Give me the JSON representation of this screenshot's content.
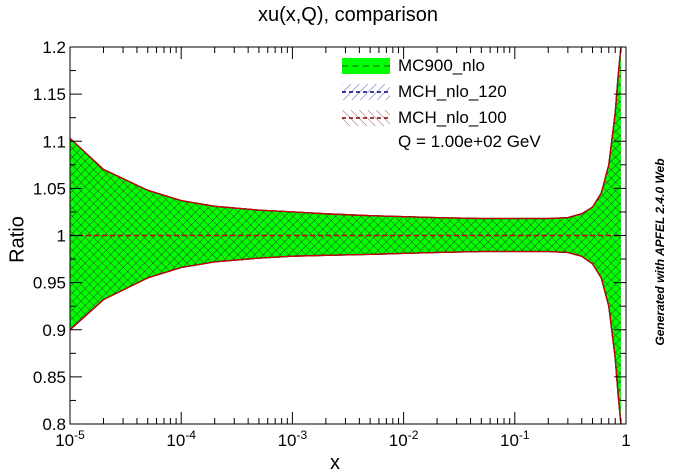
{
  "title": "xu(x,Q), comparison",
  "side_note": "Generated with APFEL 2.4.0 Web",
  "legend": {
    "items": [
      "MC900_nlo",
      "MCH_nlo_120",
      "MCH_nlo_100"
    ],
    "note": "Q = 1.00e+02 GeV"
  },
  "colors": {
    "mc900": "#00ff00",
    "mch120": "#000080",
    "mch100": "#800000",
    "nominal": "#cc0000"
  },
  "chart_data": {
    "type": "area",
    "title": "xu(x,Q), comparison",
    "xlabel": "x",
    "ylabel": "Ratio",
    "xscale": "log",
    "xlim": [
      1e-05,
      1
    ],
    "ylim": [
      0.8,
      1.2
    ],
    "x_ticks": [
      "10^-5",
      "10^-4",
      "10^-3",
      "10^-2",
      "10^-1",
      "1"
    ],
    "y_ticks": [
      "0.8",
      "0.85",
      "0.9",
      "0.95",
      "1",
      "1.05",
      "1.1",
      "1.15",
      "1.2"
    ],
    "grid": false,
    "legend_position": "top-right",
    "x": [
      1e-05,
      2e-05,
      5e-05,
      0.0001,
      0.0002,
      0.0005,
      0.001,
      0.002,
      0.005,
      0.01,
      0.02,
      0.05,
      0.1,
      0.2,
      0.3,
      0.4,
      0.5,
      0.6,
      0.7,
      0.8,
      0.85,
      0.9
    ],
    "series": [
      {
        "name": "MC900_nlo",
        "central": [
          1,
          1,
          1,
          1,
          1,
          1,
          1,
          1,
          1,
          1,
          1,
          1,
          1,
          1,
          1,
          1,
          1,
          1,
          1,
          1,
          1,
          1
        ],
        "upper": [
          1.103,
          1.07,
          1.048,
          1.037,
          1.031,
          1.027,
          1.025,
          1.023,
          1.021,
          1.02,
          1.019,
          1.018,
          1.018,
          1.018,
          1.019,
          1.023,
          1.03,
          1.045,
          1.075,
          1.13,
          1.17,
          1.2
        ],
        "lower": [
          0.9,
          0.932,
          0.955,
          0.966,
          0.972,
          0.976,
          0.978,
          0.979,
          0.98,
          0.981,
          0.982,
          0.983,
          0.983,
          0.983,
          0.982,
          0.978,
          0.97,
          0.955,
          0.925,
          0.87,
          0.83,
          0.8
        ]
      },
      {
        "name": "MCH_nlo_120",
        "central": [
          1,
          1,
          1,
          1,
          1,
          1,
          1,
          1,
          1,
          1,
          1,
          1,
          1,
          1,
          1,
          1,
          1,
          1,
          1,
          1,
          1,
          1
        ],
        "upper": [
          1.103,
          1.07,
          1.048,
          1.037,
          1.031,
          1.027,
          1.025,
          1.023,
          1.021,
          1.02,
          1.019,
          1.018,
          1.018,
          1.018,
          1.019,
          1.023,
          1.03,
          1.045,
          1.075,
          1.13,
          1.17,
          1.2
        ],
        "lower": [
          0.9,
          0.932,
          0.955,
          0.966,
          0.972,
          0.976,
          0.978,
          0.979,
          0.98,
          0.981,
          0.982,
          0.983,
          0.983,
          0.983,
          0.982,
          0.978,
          0.97,
          0.955,
          0.925,
          0.87,
          0.83,
          0.8
        ]
      },
      {
        "name": "MCH_nlo_100",
        "central": [
          1,
          1,
          1,
          1,
          1,
          1,
          1,
          1,
          1,
          1,
          1,
          1,
          1,
          1,
          1,
          1,
          1,
          1,
          1,
          1,
          1,
          1
        ],
        "upper": [
          1.103,
          1.07,
          1.048,
          1.037,
          1.031,
          1.027,
          1.025,
          1.023,
          1.021,
          1.02,
          1.019,
          1.018,
          1.018,
          1.018,
          1.019,
          1.023,
          1.03,
          1.045,
          1.075,
          1.13,
          1.17,
          1.2
        ],
        "lower": [
          0.9,
          0.932,
          0.955,
          0.966,
          0.972,
          0.976,
          0.978,
          0.979,
          0.98,
          0.981,
          0.982,
          0.983,
          0.983,
          0.983,
          0.982,
          0.978,
          0.97,
          0.955,
          0.925,
          0.87,
          0.83,
          0.8
        ]
      }
    ]
  }
}
